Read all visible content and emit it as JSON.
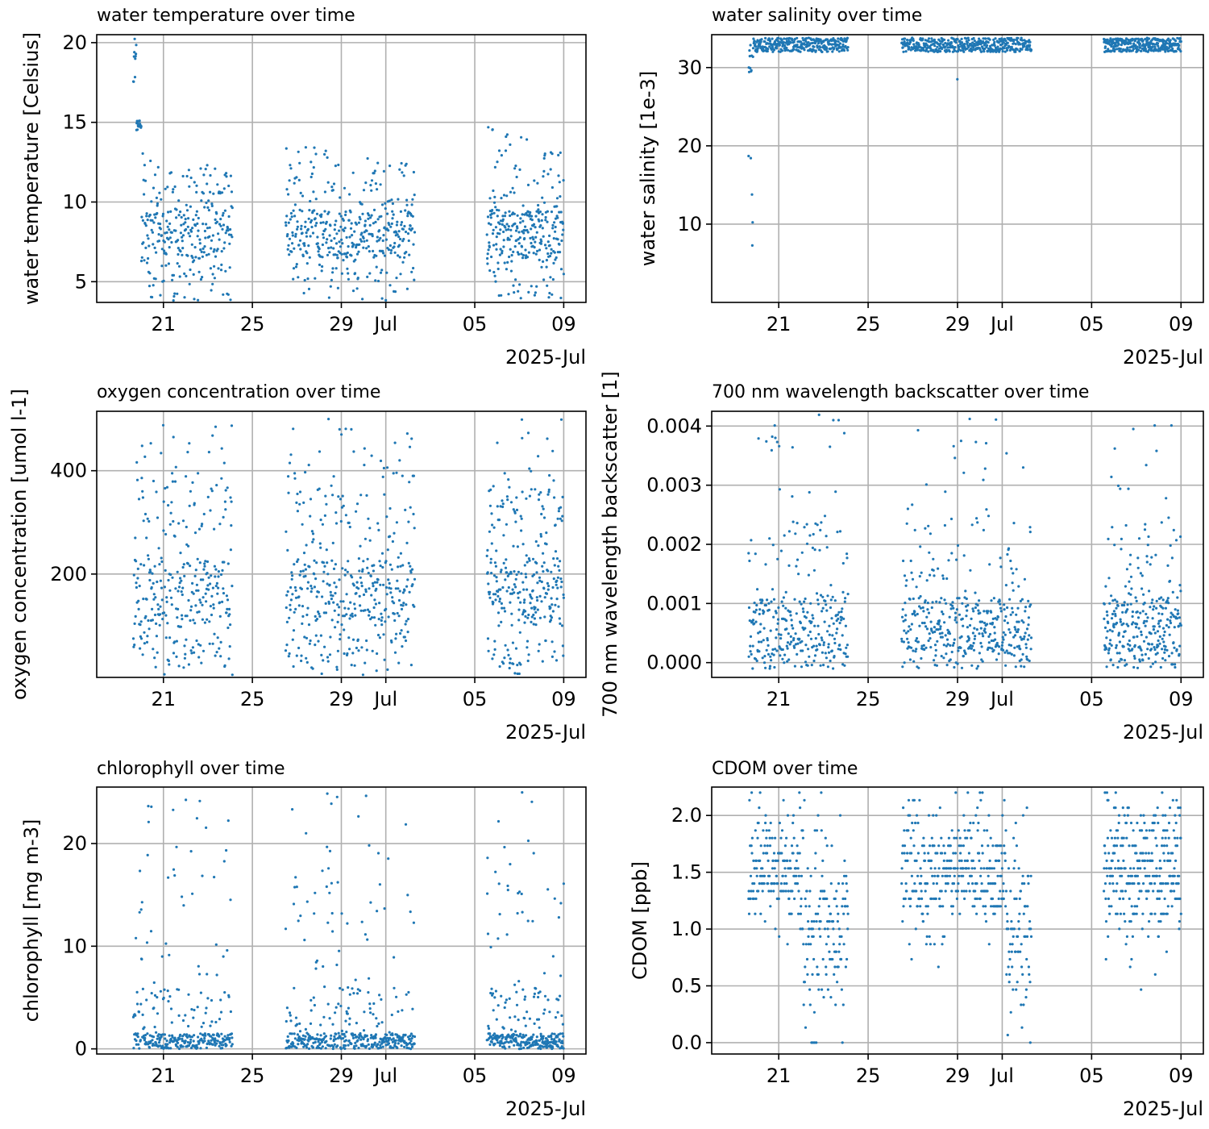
{
  "chart_data": [
    {
      "type": "scatter",
      "title": "water temperature over time",
      "ylabel": "water temperature [Celsius]",
      "xlim": [
        "2025-06-18",
        "2025-07-10"
      ],
      "ylim": [
        3.7,
        20.5
      ],
      "yticks": [
        5,
        10,
        15,
        20
      ],
      "xticks": [
        {
          "date": "2025-06-21",
          "label": "21"
        },
        {
          "date": "2025-06-25",
          "label": "25"
        },
        {
          "date": "2025-06-29",
          "label": "29"
        },
        {
          "date": "2025-07-01",
          "label": "Jul"
        },
        {
          "date": "2025-07-05",
          "label": "05"
        },
        {
          "date": "2025-07-09",
          "label": "09"
        }
      ],
      "x_offset_label": "2025-Jul",
      "grid": true,
      "color": "#1f77b4",
      "series": [
        {
          "x": [],
          "y": []
        }
      ]
    },
    {
      "type": "scatter",
      "title": "water salinity over time",
      "ylabel": "water salinity [1e-3]",
      "xlim": [
        "2025-06-18",
        "2025-07-10"
      ],
      "ylim": [
        0,
        34.2
      ],
      "yticks": [
        10,
        20,
        30
      ],
      "xticks": [
        {
          "date": "2025-06-21",
          "label": "21"
        },
        {
          "date": "2025-06-25",
          "label": "25"
        },
        {
          "date": "2025-06-29",
          "label": "29"
        },
        {
          "date": "2025-07-01",
          "label": "Jul"
        },
        {
          "date": "2025-07-05",
          "label": "05"
        },
        {
          "date": "2025-07-09",
          "label": "09"
        }
      ],
      "x_offset_label": "2025-Jul",
      "grid": true,
      "color": "#1f77b4",
      "series": [
        {
          "x": [],
          "y": []
        }
      ]
    },
    {
      "type": "scatter",
      "title": "oxygen concentration over time",
      "ylabel": "oxygen concentration [umol l-1]",
      "xlim": [
        "2025-06-18",
        "2025-07-10"
      ],
      "ylim": [
        0,
        515
      ],
      "yticks": [
        200,
        400
      ],
      "xticks": [
        {
          "date": "2025-06-21",
          "label": "21"
        },
        {
          "date": "2025-06-25",
          "label": "25"
        },
        {
          "date": "2025-06-29",
          "label": "29"
        },
        {
          "date": "2025-07-01",
          "label": "Jul"
        },
        {
          "date": "2025-07-05",
          "label": "05"
        },
        {
          "date": "2025-07-09",
          "label": "09"
        }
      ],
      "x_offset_label": "2025-Jul",
      "grid": true,
      "color": "#1f77b4",
      "series": [
        {
          "x": [],
          "y": []
        }
      ]
    },
    {
      "type": "scatter",
      "title": "700 nm wavelength backscatter over time",
      "ylabel": "700 nm wavelength backscatter [1]",
      "xlim": [
        "2025-06-18",
        "2025-07-10"
      ],
      "ylim": [
        -0.00025,
        0.00425
      ],
      "yticks": [
        0.0,
        0.001,
        0.002,
        0.003,
        0.004
      ],
      "ytick_labels": [
        "0.000",
        "0.001",
        "0.002",
        "0.003",
        "0.004"
      ],
      "xticks": [
        {
          "date": "2025-06-21",
          "label": "21"
        },
        {
          "date": "2025-06-25",
          "label": "25"
        },
        {
          "date": "2025-06-29",
          "label": "29"
        },
        {
          "date": "2025-07-01",
          "label": "Jul"
        },
        {
          "date": "2025-07-05",
          "label": "05"
        },
        {
          "date": "2025-07-09",
          "label": "09"
        }
      ],
      "x_offset_label": "2025-Jul",
      "grid": true,
      "color": "#1f77b4",
      "series": [
        {
          "x": [],
          "y": []
        }
      ]
    },
    {
      "type": "scatter",
      "title": "chlorophyll over time",
      "ylabel": "chlorophyll [mg m-3]",
      "xlim": [
        "2025-06-18",
        "2025-07-10"
      ],
      "ylim": [
        -0.5,
        25.5
      ],
      "yticks": [
        0,
        10,
        20
      ],
      "xticks": [
        {
          "date": "2025-06-21",
          "label": "21"
        },
        {
          "date": "2025-06-25",
          "label": "25"
        },
        {
          "date": "2025-06-29",
          "label": "29"
        },
        {
          "date": "2025-07-01",
          "label": "Jul"
        },
        {
          "date": "2025-07-05",
          "label": "05"
        },
        {
          "date": "2025-07-09",
          "label": "09"
        }
      ],
      "x_offset_label": "2025-Jul",
      "grid": true,
      "color": "#1f77b4",
      "series": [
        {
          "x": [],
          "y": []
        }
      ]
    },
    {
      "type": "scatter",
      "title": "CDOM over time",
      "ylabel": "CDOM [ppb]",
      "xlim": [
        "2025-06-18",
        "2025-07-10"
      ],
      "ylim": [
        -0.1,
        2.25
      ],
      "yticks": [
        0.0,
        0.5,
        1.0,
        1.5,
        2.0
      ],
      "ytick_labels": [
        "0.0",
        "0.5",
        "1.0",
        "1.5",
        "2.0"
      ],
      "xticks": [
        {
          "date": "2025-06-21",
          "label": "21"
        },
        {
          "date": "2025-06-25",
          "label": "25"
        },
        {
          "date": "2025-06-29",
          "label": "29"
        },
        {
          "date": "2025-07-01",
          "label": "Jul"
        },
        {
          "date": "2025-07-05",
          "label": "05"
        },
        {
          "date": "2025-07-09",
          "label": "09"
        }
      ],
      "x_offset_label": "2025-Jul",
      "grid": true,
      "color": "#1f77b4",
      "series": [
        {
          "x": [],
          "y": []
        }
      ]
    }
  ]
}
